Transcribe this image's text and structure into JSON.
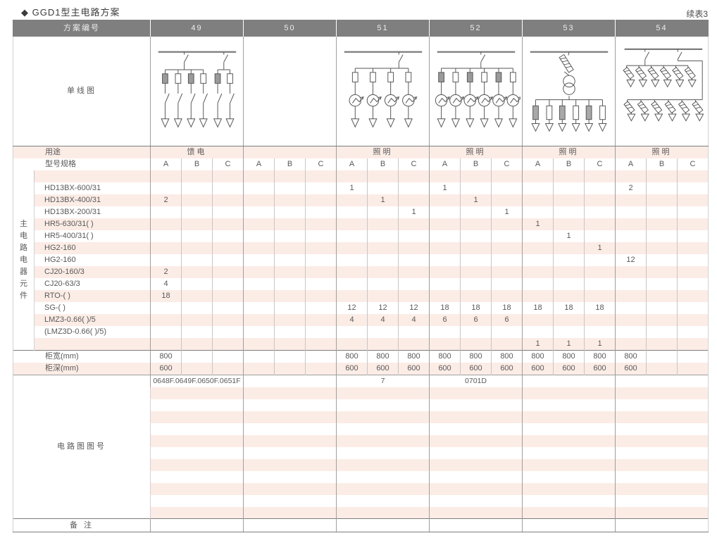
{
  "page": {
    "title": "◆ GGD1型主电路方案",
    "continued": "续表3"
  },
  "colors": {
    "header_bg": "#7f7f7f",
    "stripe_pink": "#fcece6",
    "line_dark": "#7d7d7d",
    "line_mid": "#9e9e9e",
    "line_light": "#c6c6c6",
    "text": "#595959"
  },
  "table": {
    "header_label": "方案编号",
    "schemes": [
      "49",
      "50",
      "51",
      "52",
      "53",
      "54"
    ],
    "diagram_row_label": "单线图",
    "usage_label": "用途",
    "usages": [
      "馈电",
      "",
      "照明",
      "照明",
      "照明",
      "照明"
    ],
    "spec_label": "型号规格",
    "phase_headers": [
      "A",
      "B",
      "C"
    ],
    "side_label": "主电路电器元件",
    "component_rows": [
      {
        "label": "",
        "values": [
          "",
          "",
          "",
          "",
          "",
          "",
          "",
          "",
          "",
          "",
          "",
          "",
          "",
          "",
          "",
          "",
          "",
          ""
        ]
      },
      {
        "label": "HD13BX-600/31",
        "values": [
          "",
          "",
          "",
          "",
          "",
          "",
          "1",
          "",
          "",
          "1",
          "",
          "",
          "",
          "",
          "",
          "2",
          "",
          ""
        ]
      },
      {
        "label": "HD13BX-400/31",
        "values": [
          "2",
          "",
          "",
          "",
          "",
          "",
          "",
          "1",
          "",
          "",
          "1",
          "",
          "",
          "",
          "",
          "",
          "",
          ""
        ]
      },
      {
        "label": "HD13BX-200/31",
        "values": [
          "",
          "",
          "",
          "",
          "",
          "",
          "",
          "",
          "1",
          "",
          "",
          "1",
          "",
          "",
          "",
          "",
          "",
          ""
        ]
      },
      {
        "label": "HR5-630/31( )",
        "values": [
          "",
          "",
          "",
          "",
          "",
          "",
          "",
          "",
          "",
          "",
          "",
          "",
          "1",
          "",
          "",
          "",
          "",
          ""
        ]
      },
      {
        "label": "HR5-400/31( )",
        "values": [
          "",
          "",
          "",
          "",
          "",
          "",
          "",
          "",
          "",
          "",
          "",
          "",
          "",
          "1",
          "",
          "",
          "",
          ""
        ]
      },
      {
        "label": "HG2-160",
        "values": [
          "",
          "",
          "",
          "",
          "",
          "",
          "",
          "",
          "",
          "",
          "",
          "",
          "",
          "",
          "1",
          "",
          "",
          ""
        ]
      },
      {
        "label": "HG2-160",
        "values": [
          "",
          "",
          "",
          "",
          "",
          "",
          "",
          "",
          "",
          "",
          "",
          "",
          "",
          "",
          "",
          "12",
          "",
          ""
        ]
      },
      {
        "label": "CJ20-160/3",
        "values": [
          "2",
          "",
          "",
          "",
          "",
          "",
          "",
          "",
          "",
          "",
          "",
          "",
          "",
          "",
          "",
          "",
          "",
          ""
        ]
      },
      {
        "label": "CJ20-63/3",
        "values": [
          "4",
          "",
          "",
          "",
          "",
          "",
          "",
          "",
          "",
          "",
          "",
          "",
          "",
          "",
          "",
          "",
          "",
          ""
        ]
      },
      {
        "label": "RTO-( )",
        "values": [
          "18",
          "",
          "",
          "",
          "",
          "",
          "",
          "",
          "",
          "",
          "",
          "",
          "",
          "",
          "",
          "",
          "",
          ""
        ]
      },
      {
        "label": "SG-( )",
        "values": [
          "",
          "",
          "",
          "",
          "",
          "",
          "12",
          "12",
          "12",
          "18",
          "18",
          "18",
          "18",
          "18",
          "18",
          "",
          "",
          ""
        ]
      },
      {
        "label": "LMZ3-0.66( )/5",
        "values": [
          "",
          "",
          "",
          "",
          "",
          "",
          "4",
          "4",
          "4",
          "6",
          "6",
          "6",
          "",
          "",
          "",
          "",
          "",
          ""
        ]
      },
      {
        "label": "(LMZ3D-0.66( )/5)",
        "values": [
          "",
          "",
          "",
          "",
          "",
          "",
          "",
          "",
          "",
          "",
          "",
          "",
          "",
          "",
          "",
          "",
          "",
          ""
        ]
      },
      {
        "label": "",
        "values": [
          "",
          "",
          "",
          "",
          "",
          "",
          "",
          "",
          "",
          "",
          "",
          "",
          "1",
          "1",
          "1",
          "",
          "",
          ""
        ]
      }
    ],
    "width_row": {
      "label": "柜宽(mm)",
      "values": [
        "800",
        "",
        "",
        "",
        "",
        "",
        "800",
        "800",
        "800",
        "800",
        "800",
        "800",
        "800",
        "800",
        "800",
        "800",
        "",
        ""
      ]
    },
    "depth_row": {
      "label": "柜深(mm)",
      "values": [
        "600",
        "",
        "",
        "",
        "",
        "",
        "600",
        "600",
        "600",
        "600",
        "600",
        "600",
        "600",
        "600",
        "600",
        "600",
        "",
        ""
      ]
    },
    "diagram_no_label": "电路图图号",
    "diagram_numbers": [
      "0648F.0649F.0650F.0651F",
      "",
      "7",
      "0701D",
      "",
      ""
    ],
    "diagram_section_rows": 12,
    "remark_label": "备 注"
  },
  "diagrams": [
    {
      "scheme": "49",
      "kind": "knife-fuse-feeders",
      "groups": [
        4,
        2
      ]
    },
    {
      "scheme": "50",
      "kind": "empty"
    },
    {
      "scheme": "51",
      "kind": "fuse-meter-feeders",
      "branches": 4
    },
    {
      "scheme": "52",
      "kind": "fuse-meter-feeders",
      "branches": 6
    },
    {
      "scheme": "53",
      "kind": "fused-transformer-distribution",
      "branches": 6
    },
    {
      "scheme": "54",
      "kind": "tilted-fuse-double-row",
      "rows": 2,
      "branches": 6
    }
  ]
}
